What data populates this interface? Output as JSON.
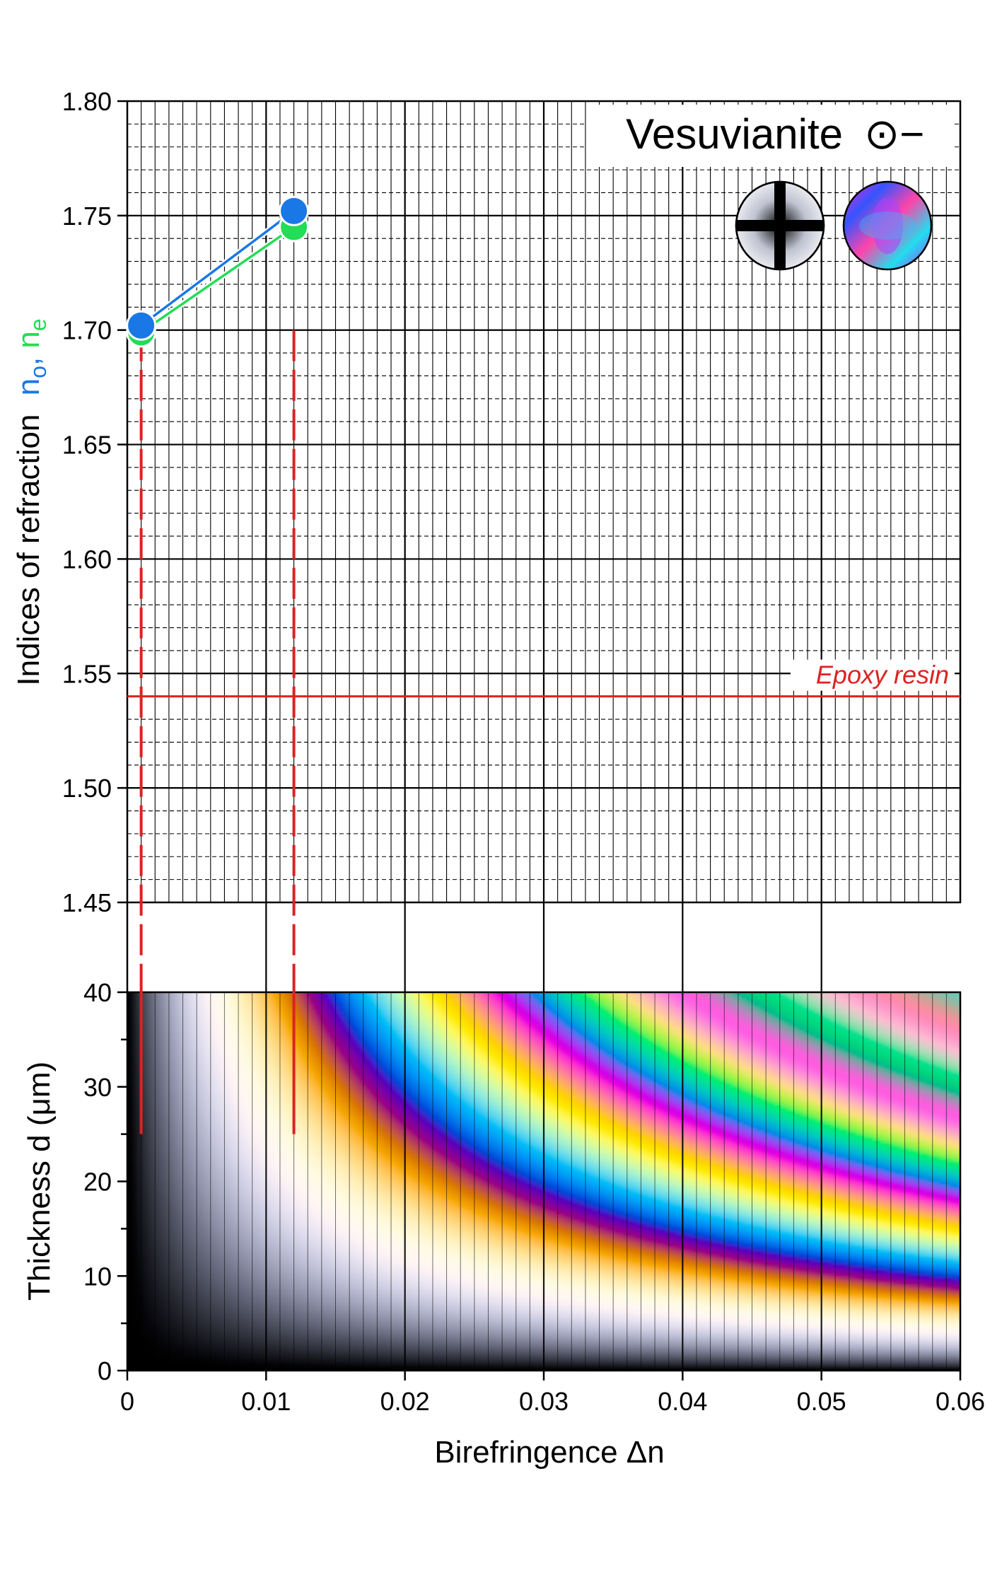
{
  "chart_data": [
    {
      "type": "scatter",
      "title": "Vesuvianite",
      "optic_sign_symbol": "⊙−",
      "ylabel": "Indices of refraction",
      "ylabel_no": "n",
      "ylabel_no_sub": "o",
      "ylabel_comma": ", ",
      "ylabel_ne": "n",
      "ylabel_ne_sub": "e",
      "ylim": [
        1.45,
        1.8
      ],
      "xlim": [
        0,
        0.06
      ],
      "yticks": [
        "1.45",
        "1.50",
        "1.55",
        "1.60",
        "1.65",
        "1.70",
        "1.75",
        "1.80"
      ],
      "grid": true,
      "series": [
        {
          "color": "#1a78e6",
          "points": [
            {
              "x": 0.001,
              "y": 1.702
            },
            {
              "x": 0.012,
              "y": 1.752
            }
          ]
        },
        {
          "color": "#22dd55",
          "points": [
            {
              "x": 0.001,
              "y": 1.699
            },
            {
              "x": 0.012,
              "y": 1.745
            }
          ]
        }
      ],
      "reference_line": {
        "label": "Epoxy resin",
        "y": 1.54,
        "color": "#dd2222"
      },
      "dashed_markers": [
        0.001,
        0.012
      ]
    },
    {
      "type": "heatmap",
      "ylabel": "Thickness  d (μm)",
      "xlabel": "Birefringence  Δn",
      "xlim": [
        0,
        0.06
      ],
      "ylim": [
        0,
        40
      ],
      "xticks": [
        "0",
        "0.01",
        "0.02",
        "0.03",
        "0.04",
        "0.05",
        "0.06"
      ],
      "yticks": [
        "0",
        "10",
        "20",
        "30",
        "40"
      ],
      "grid": true,
      "description": "Michel-Lévy interference colour chart",
      "marker_lines": {
        "x": [
          0.001,
          0.012
        ],
        "y_top": 25,
        "color": "#dd2222"
      }
    }
  ]
}
